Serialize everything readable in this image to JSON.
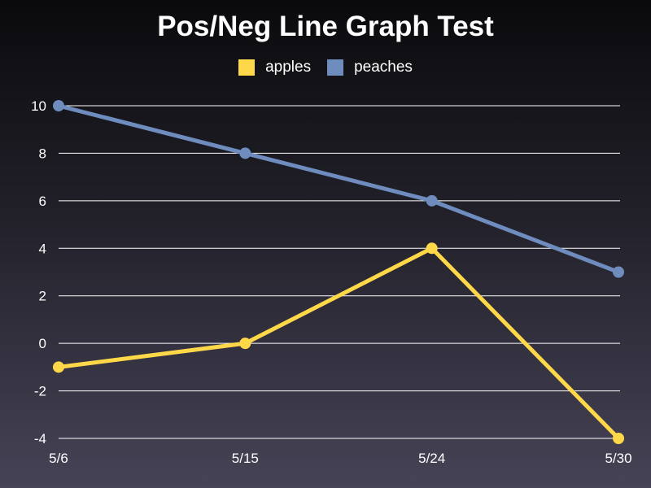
{
  "chart_data": {
    "type": "line",
    "title": "Pos/Neg Line Graph Test",
    "categories": [
      "5/6",
      "5/15",
      "5/24",
      "5/30"
    ],
    "series": [
      {
        "name": "apples",
        "values": [
          -1,
          0,
          4,
          -4
        ],
        "color": "#ffd84a"
      },
      {
        "name": "peaches",
        "values": [
          10,
          8,
          6,
          3
        ],
        "color": "#6f8cbf"
      }
    ],
    "yticks": [
      10,
      8,
      6,
      4,
      2,
      0,
      -2,
      -4
    ],
    "ylim": [
      -4,
      10
    ],
    "grid": true,
    "legend": "top-center"
  }
}
